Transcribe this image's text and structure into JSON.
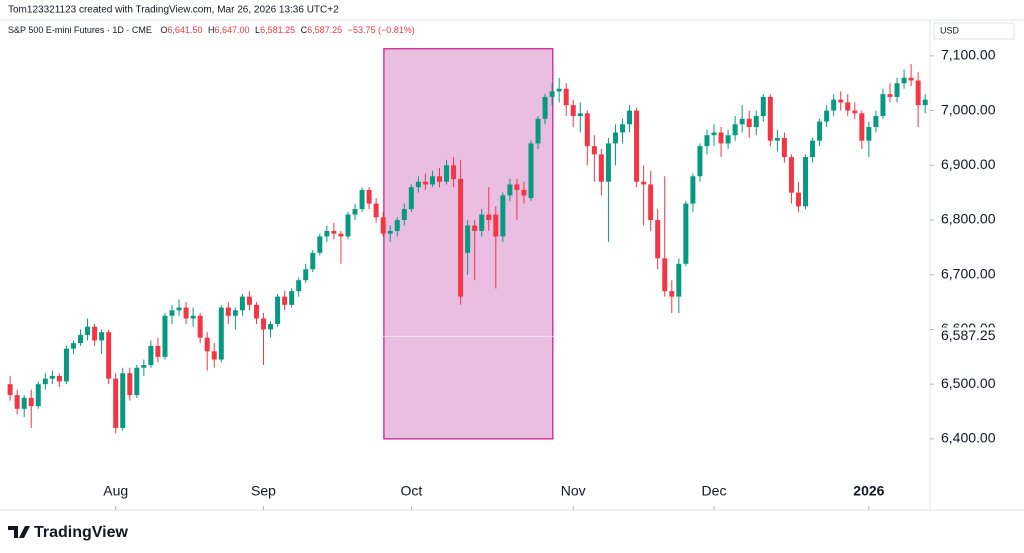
{
  "chart_data": {
    "type": "candlestick",
    "credit": "Tom123321123 created with TradingView.com, Mar 26, 2026 13:36 UTC+2",
    "title": "S&P 500 E-mini Futures · 1D · CME",
    "legend": {
      "o_label": "O",
      "o": "6,641.50",
      "h_label": "H",
      "h": "6,647.00",
      "l_label": "L",
      "l": "6,581.25",
      "c_label": "C",
      "c": "6,587.25",
      "change": "−53.75 (−0.81%)"
    },
    "currency": "USD",
    "brand": "TradingView",
    "up_color": "#089981",
    "down_color": "#f23645",
    "open": [
      6500,
      6480,
      6455,
      6475,
      6460,
      6500,
      6510,
      6515,
      6505,
      6565,
      6575,
      6590,
      6605,
      6580,
      6595,
      6510,
      6420,
      6520,
      6480,
      6530,
      6535,
      6570,
      6550,
      6625,
      6635,
      6640,
      6620,
      6625,
      6585,
      6560,
      6545,
      6640,
      6625,
      6635,
      6660,
      6645,
      6620,
      6600,
      6610,
      6660,
      6645,
      6670,
      6690,
      6710,
      6740,
      6770,
      6780,
      6775,
      6770,
      6810,
      6820,
      6855,
      6830,
      6805,
      6775,
      6780,
      6800,
      6820,
      6860,
      6870,
      6865,
      6880,
      6870,
      6900,
      6875,
      6740,
      6790,
      6780,
      6810,
      6810,
      6770,
      6845,
      6865,
      6855,
      6840,
      6940,
      6985,
      7025,
      7035,
      7040,
      7010,
      6990,
      6995,
      6935,
      6920,
      6870,
      6940,
      6960,
      6975,
      7000,
      6870,
      6865,
      6800,
      6730,
      6670,
      6660,
      6720,
      6830,
      6880,
      6935,
      6955,
      6960,
      6940,
      6955,
      6975,
      6985,
      6970,
      6990,
      7025,
      6945,
      6950,
      6915,
      6850,
      6825,
      6915,
      6945,
      6980,
      7000,
      7020,
      7015,
      7000,
      6995,
      6945,
      6970,
      6990,
      7030,
      7025,
      7050,
      7060,
      7055,
      7010
    ],
    "high": [
      6515,
      6490,
      6480,
      6490,
      6505,
      6520,
      6525,
      6520,
      6570,
      6580,
      6600,
      6620,
      6610,
      6600,
      6600,
      6520,
      6530,
      6530,
      6535,
      6545,
      6580,
      6585,
      6630,
      6645,
      6655,
      6650,
      6640,
      6630,
      6595,
      6575,
      6645,
      6650,
      6640,
      6665,
      6670,
      6650,
      6630,
      6615,
      6665,
      6670,
      6675,
      6695,
      6720,
      6745,
      6775,
      6790,
      6795,
      6780,
      6815,
      6830,
      6860,
      6860,
      6840,
      6815,
      6790,
      6805,
      6830,
      6865,
      6880,
      6885,
      6890,
      6895,
      6910,
      6915,
      6910,
      6800,
      6800,
      6820,
      6860,
      6825,
      6850,
      6875,
      6875,
      6870,
      6945,
      6990,
      7030,
      7050,
      7060,
      7050,
      7020,
      7015,
      7000,
      6955,
      6930,
      6950,
      6975,
      6985,
      7010,
      7005,
      6900,
      6890,
      6820,
      6880,
      6690,
      6730,
      6835,
      6885,
      6940,
      6965,
      6975,
      6970,
      6965,
      6990,
      7010,
      7000,
      7000,
      7030,
      7030,
      6965,
      6960,
      6920,
      6870,
      6920,
      6950,
      6985,
      7010,
      7030,
      7035,
      7030,
      7015,
      7000,
      6980,
      7000,
      7040,
      7050,
      7060,
      7075,
      7085,
      7070,
      7030
    ],
    "low": [
      6470,
      6445,
      6440,
      6420,
      6455,
      6490,
      6500,
      6495,
      6500,
      6555,
      6570,
      6580,
      6570,
      6555,
      6500,
      6410,
      6415,
      6470,
      6475,
      6515,
      6530,
      6540,
      6545,
      6610,
      6625,
      6610,
      6605,
      6575,
      6525,
      6530,
      6540,
      6610,
      6600,
      6625,
      6635,
      6610,
      6535,
      6585,
      6605,
      6635,
      6640,
      6660,
      6685,
      6705,
      6735,
      6760,
      6765,
      6720,
      6765,
      6800,
      6815,
      6820,
      6795,
      6770,
      6760,
      6770,
      6790,
      6815,
      6850,
      6855,
      6860,
      6860,
      6865,
      6860,
      6645,
      6700,
      6690,
      6770,
      6780,
      6675,
      6760,
      6835,
      6800,
      6830,
      6835,
      6930,
      6975,
      7010,
      7015,
      6990,
      6970,
      6960,
      6900,
      6870,
      6845,
      6760,
      6900,
      6940,
      6960,
      6860,
      6790,
      6780,
      6710,
      6660,
      6630,
      6630,
      6715,
      6815,
      6870,
      6920,
      6935,
      6915,
      6930,
      6945,
      6960,
      6950,
      6955,
      6980,
      6935,
      6925,
      6905,
      6830,
      6815,
      6820,
      6905,
      6935,
      6970,
      6990,
      7000,
      6990,
      6985,
      6930,
      6915,
      6960,
      6985,
      7015,
      7015,
      7040,
      7045,
      6970,
      6995
    ],
    "close": [
      6480,
      6455,
      6475,
      6460,
      6500,
      6510,
      6515,
      6505,
      6565,
      6575,
      6590,
      6605,
      6580,
      6595,
      6510,
      6420,
      6520,
      6480,
      6530,
      6535,
      6570,
      6550,
      6625,
      6635,
      6640,
      6620,
      6625,
      6585,
      6560,
      6545,
      6640,
      6625,
      6635,
      6660,
      6645,
      6620,
      6600,
      6610,
      6660,
      6645,
      6670,
      6690,
      6710,
      6740,
      6770,
      6780,
      6775,
      6770,
      6810,
      6820,
      6855,
      6830,
      6805,
      6775,
      6780,
      6800,
      6820,
      6860,
      6870,
      6865,
      6880,
      6870,
      6900,
      6875,
      6660,
      6790,
      6780,
      6810,
      6800,
      6770,
      6845,
      6865,
      6855,
      6845,
      6940,
      6985,
      7025,
      7035,
      7040,
      7010,
      6990,
      6995,
      6935,
      6920,
      6870,
      6940,
      6960,
      6975,
      7000,
      6870,
      6865,
      6800,
      6730,
      6670,
      6660,
      6720,
      6830,
      6880,
      6935,
      6955,
      6960,
      6940,
      6955,
      6975,
      6985,
      6970,
      6990,
      7025,
      6945,
      6950,
      6915,
      6850,
      6825,
      6915,
      6945,
      6980,
      7000,
      7020,
      7015,
      7000,
      6995,
      6945,
      6970,
      6990,
      7030,
      7025,
      7050,
      7060,
      7055,
      7010,
      7020
    ],
    "xlim": [
      -0.3,
      130.4
    ],
    "xticks": [
      {
        "value": 15,
        "label": "Aug"
      },
      {
        "value": 36,
        "label": "Sep"
      },
      {
        "value": 57,
        "label": "Oct"
      },
      {
        "value": 80,
        "label": "Nov"
      },
      {
        "value": 100,
        "label": "Dec"
      },
      {
        "value": 122,
        "label": "2026"
      }
    ],
    "ylim": [
      6334,
      7129
    ],
    "yticks": [
      {
        "value": 6400,
        "label": "6,400.00"
      },
      {
        "value": 6500,
        "label": "6,500.00"
      },
      {
        "value": 6600,
        "label": "6,600.00"
      },
      {
        "value": 6700,
        "label": "6,700.00"
      },
      {
        "value": 6800,
        "label": "6,800.00"
      },
      {
        "value": 6900,
        "label": "6,900.00"
      },
      {
        "value": 7000,
        "label": "7,000.00"
      },
      {
        "value": 7100,
        "label": "7,100.00"
      }
    ],
    "last_price": {
      "value": 6587.25,
      "label": "6,587.25"
    },
    "highlight": {
      "x": [
        53.1,
        77.1
      ],
      "y": [
        6400,
        7113
      ],
      "fill": "#e6b3da",
      "stroke": "#c2188c"
    }
  }
}
